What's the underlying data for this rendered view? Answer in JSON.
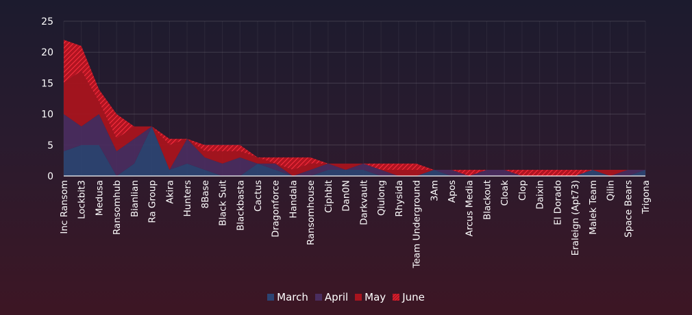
{
  "chart_data": {
    "type": "area",
    "categories": [
      "Inc Ransom",
      "Lockbit3",
      "Medusa",
      "Ransomhub",
      "Bianlian",
      "Ra Group",
      "Akira",
      "Hunters",
      "8Base",
      "Black Suit",
      "Blackbasta",
      "Cactus",
      "Dragonforce",
      "Handala",
      "Ransomhouse",
      "Ciphbit",
      "Dan0N",
      "Darkvault",
      "Qiulong",
      "Rhysida",
      "Team Underground",
      "3Am",
      "Apos",
      "Arcus Media",
      "Blackout",
      "Cloak",
      "Clop",
      "Daixin",
      "El Dorado",
      "Eraleign (Apt73)",
      "Malek Team",
      "Qilin",
      "Space Bears",
      "Trigona"
    ],
    "series": [
      {
        "name": "March",
        "color": "#2c4473",
        "values": [
          4,
          5,
          5,
          0,
          2,
          8,
          1,
          2,
          1,
          0,
          0,
          2,
          1,
          0,
          0,
          1,
          1,
          1,
          0,
          0,
          0,
          1,
          0,
          0,
          0,
          0,
          0,
          0,
          0,
          0,
          1,
          0,
          0,
          1
        ]
      },
      {
        "name": "April",
        "color": "#4a2d5f",
        "values": [
          6,
          3,
          5,
          4,
          4,
          0,
          0,
          4,
          2,
          2,
          3,
          0,
          1,
          0,
          1,
          1,
          0,
          1,
          1,
          0,
          0,
          0,
          1,
          0,
          1,
          1,
          0,
          0,
          0,
          0,
          0,
          0,
          1,
          0
        ]
      },
      {
        "name": "May",
        "color": "#a8141e",
        "values": [
          5,
          9,
          2,
          2,
          2,
          0,
          4,
          0,
          1,
          2,
          1,
          1,
          0,
          1,
          1,
          0,
          1,
          0,
          0,
          1,
          1,
          0,
          0,
          0,
          0,
          0,
          0,
          0,
          0,
          0,
          0,
          1,
          0,
          0
        ]
      },
      {
        "name": "June",
        "color": "#d8182a",
        "values": [
          7,
          4,
          2,
          4,
          0,
          0,
          1,
          0,
          1,
          1,
          1,
          0,
          1,
          2,
          1,
          0,
          0,
          0,
          1,
          1,
          1,
          0,
          0,
          1,
          0,
          0,
          1,
          1,
          1,
          1,
          0,
          0,
          0,
          0
        ]
      }
    ],
    "ylim": [
      0,
      25
    ],
    "yticks": [
      0,
      5,
      10,
      15,
      20,
      25
    ],
    "grid": true,
    "stacked": true,
    "legend_position": "bottom-center"
  }
}
